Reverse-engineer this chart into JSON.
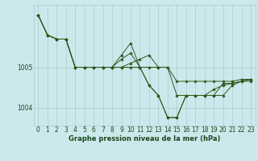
{
  "xlabel": "Graphe pression niveau de la mer (hPa)",
  "bg_color": "#cce8ec",
  "grid_color": "#aacccc",
  "line_color": "#2d5a1b",
  "marker_color": "#2d5a1b",
  "text_color": "#1a4a1a",
  "ylim": [
    1003.55,
    1006.55
  ],
  "xlim": [
    -0.5,
    23.5
  ],
  "yticks": [
    1004,
    1005
  ],
  "xticks": [
    0,
    1,
    2,
    3,
    4,
    5,
    6,
    7,
    8,
    9,
    10,
    11,
    12,
    13,
    14,
    15,
    16,
    17,
    18,
    19,
    20,
    21,
    22,
    23
  ],
  "series": [
    [
      1006.3,
      1005.8,
      1005.7,
      1005.7,
      1005.0,
      1005.0,
      1005.0,
      1005.0,
      1005.0,
      1005.0,
      1005.0,
      1005.0,
      1005.0,
      1005.0,
      1005.0,
      1004.3,
      1004.3,
      1004.3,
      1004.3,
      1004.3,
      1004.6,
      1004.6,
      1004.65,
      1004.65
    ],
    [
      1006.3,
      1005.8,
      1005.7,
      1005.7,
      1005.0,
      1005.0,
      1005.0,
      1005.0,
      1005.0,
      1005.0,
      1005.1,
      1005.2,
      1005.3,
      1005.0,
      1005.0,
      1004.65,
      1004.65,
      1004.65,
      1004.65,
      1004.65,
      1004.65,
      1004.65,
      1004.7,
      1004.7
    ],
    [
      1006.3,
      1005.8,
      1005.7,
      1005.7,
      1005.0,
      1005.0,
      1005.0,
      1005.0,
      1005.0,
      1005.2,
      1005.35,
      1005.0,
      1004.55,
      1004.3,
      1003.75,
      1003.75,
      1004.3,
      1004.3,
      1004.3,
      1004.45,
      1004.55,
      1004.6,
      1004.65,
      1004.7
    ],
    [
      1006.3,
      1005.8,
      1005.7,
      1005.7,
      1005.0,
      1005.0,
      1005.0,
      1005.0,
      1005.0,
      1005.3,
      1005.6,
      1005.0,
      1004.55,
      1004.3,
      1003.75,
      1003.75,
      1004.3,
      1004.3,
      1004.3,
      1004.3,
      1004.3,
      1004.55,
      1004.65,
      1004.7
    ]
  ]
}
